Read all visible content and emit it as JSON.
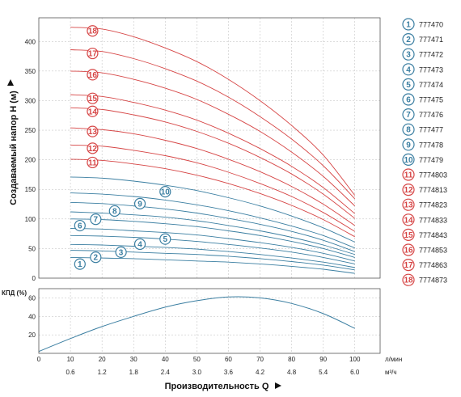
{
  "chart_data": {
    "type": "line",
    "head_chart": {
      "ylabel": "Создаваемый напор H (м)",
      "ylim": [
        0,
        440
      ],
      "yticks": [
        0,
        50,
        100,
        150,
        200,
        250,
        300,
        350,
        400
      ],
      "x_lpm": [
        10,
        20,
        30,
        40,
        50,
        60,
        70,
        80,
        90,
        100
      ],
      "series": [
        {
          "name": "777470",
          "num": "1",
          "group": "blue",
          "values": [
            35,
            34,
            33,
            31,
            29,
            27,
            24,
            20,
            15,
            8
          ]
        },
        {
          "name": "777471",
          "num": "2",
          "group": "blue",
          "values": [
            47,
            46,
            44,
            42,
            40,
            37,
            33,
            28,
            22,
            14
          ]
        },
        {
          "name": "777472",
          "num": "3",
          "group": "blue",
          "values": [
            57,
            56,
            54,
            52,
            49,
            45,
            40,
            34,
            27,
            18
          ]
        },
        {
          "name": "777473",
          "num": "4",
          "group": "blue",
          "values": [
            72,
            71,
            69,
            66,
            62,
            57,
            51,
            44,
            35,
            24
          ]
        },
        {
          "name": "777474",
          "num": "5",
          "group": "blue",
          "values": [
            84,
            83,
            80,
            77,
            73,
            67,
            60,
            52,
            42,
            29
          ]
        },
        {
          "name": "777475",
          "num": "6",
          "group": "blue",
          "values": [
            100,
            99,
            96,
            92,
            87,
            80,
            72,
            62,
            50,
            35
          ]
        },
        {
          "name": "777476",
          "num": "7",
          "group": "blue",
          "values": [
            112,
            110,
            107,
            103,
            97,
            89,
            80,
            69,
            56,
            40
          ]
        },
        {
          "name": "777477",
          "num": "8",
          "group": "blue",
          "values": [
            128,
            126,
            122,
            117,
            110,
            101,
            91,
            79,
            64,
            45
          ]
        },
        {
          "name": "777478",
          "num": "9",
          "group": "blue",
          "values": [
            144,
            142,
            138,
            132,
            124,
            114,
            102,
            88,
            72,
            51
          ]
        },
        {
          "name": "777479",
          "num": "10",
          "group": "blue",
          "values": [
            171,
            169,
            164,
            157,
            148,
            136,
            122,
            105,
            85,
            61
          ]
        },
        {
          "name": "7774803",
          "num": "11",
          "group": "red",
          "values": [
            201,
            199,
            193,
            185,
            174,
            160,
            143,
            123,
            99,
            70
          ]
        },
        {
          "name": "7774813",
          "num": "12",
          "group": "red",
          "values": [
            225,
            223,
            216,
            207,
            195,
            179,
            160,
            138,
            111,
            79
          ]
        },
        {
          "name": "7774823",
          "num": "13",
          "group": "red",
          "values": [
            254,
            251,
            244,
            233,
            219,
            201,
            180,
            155,
            125,
            89
          ]
        },
        {
          "name": "7774833",
          "num": "14",
          "group": "red",
          "values": [
            288,
            285,
            276,
            264,
            248,
            228,
            204,
            176,
            142,
            101
          ]
        },
        {
          "name": "7774843",
          "num": "15",
          "group": "red",
          "values": [
            310,
            307,
            297,
            284,
            267,
            245,
            219,
            189,
            153,
            109
          ]
        },
        {
          "name": "7774853",
          "num": "16",
          "group": "red",
          "values": [
            350,
            347,
            336,
            321,
            302,
            277,
            248,
            213,
            172,
            122
          ]
        },
        {
          "name": "7774863",
          "num": "17",
          "group": "red",
          "values": [
            386,
            383,
            371,
            354,
            333,
            306,
            273,
            235,
            190,
            134
          ]
        },
        {
          "name": "7774873",
          "num": "18",
          "group": "red",
          "values": [
            424,
            421,
            408,
            389,
            366,
            336,
            300,
            258,
            208,
            140
          ]
        }
      ],
      "badge_positions_lpm": [
        13,
        18,
        26,
        32,
        40,
        13,
        18,
        24,
        32,
        40,
        17,
        17,
        17,
        17,
        17,
        17,
        17,
        17
      ]
    },
    "efficiency_chart": {
      "ylabel": "КПД (%)",
      "ylim": [
        0,
        70
      ],
      "yticks": [
        20,
        40,
        60
      ],
      "x_lpm": [
        0,
        10,
        20,
        30,
        40,
        50,
        60,
        70,
        80,
        90,
        100
      ],
      "values": [
        2,
        16,
        29,
        40,
        50,
        57,
        61,
        60,
        54,
        43,
        27
      ]
    },
    "x_axis": {
      "title": "Производительность Q",
      "lpm_ticks": [
        "0",
        "10",
        "20",
        "30",
        "40",
        "50",
        "60",
        "70",
        "80",
        "90",
        "100"
      ],
      "lpm_unit": "л/мин",
      "m3h_ticks": [
        "0.6",
        "1.2",
        "1.8",
        "2.4",
        "3.0",
        "3.6",
        "4.2",
        "4.8",
        "5.4",
        "6.0"
      ],
      "m3h_unit": "м³/ч"
    },
    "colors": {
      "blue": "#3a7ea1",
      "red": "#d64545",
      "grid": "#bbbbbb"
    }
  }
}
